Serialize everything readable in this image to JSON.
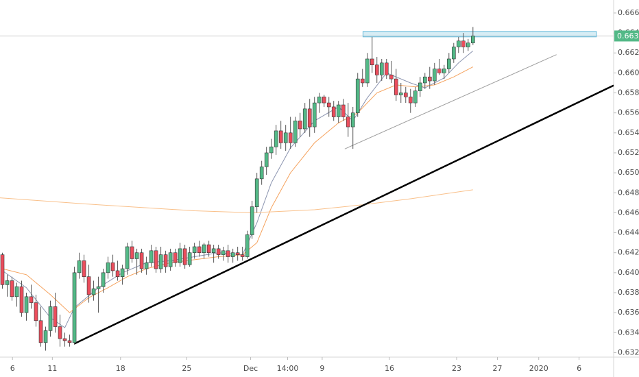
{
  "chart_data": {
    "type": "candlestick",
    "up_color": "#53b987",
    "down_color": "#eb4d5c",
    "open": [
      0.6418,
      0.6388,
      0.6392,
      0.6376,
      0.6386,
      0.636,
      0.6376,
      0.637,
      0.6352,
      0.633,
      0.6342,
      0.6366,
      0.6346,
      0.6334,
      0.6332,
      0.633,
      0.64,
      0.6412,
      0.6396,
      0.6378,
      0.6384,
      0.6386,
      0.64,
      0.641,
      0.6402,
      0.6396,
      0.6404,
      0.6426,
      0.6414,
      0.642,
      0.6404,
      0.641,
      0.6422,
      0.6404,
      0.6418,
      0.6406,
      0.642,
      0.641,
      0.6424,
      0.6408,
      0.642,
      0.6426,
      0.642,
      0.6428,
      0.642,
      0.6424,
      0.6418,
      0.6422,
      0.6416,
      0.642,
      0.6418,
      0.6416,
      0.6438,
      0.6466,
      0.6494,
      0.6506,
      0.652,
      0.6526,
      0.6542,
      0.653,
      0.654,
      0.653,
      0.6552,
      0.6544,
      0.6564,
      0.6546,
      0.657,
      0.6576,
      0.657,
      0.6566,
      0.6556,
      0.6568,
      0.6556,
      0.6546,
      0.656,
      0.6594,
      0.659,
      0.6614,
      0.6608,
      0.6598,
      0.661,
      0.6598,
      0.6594,
      0.6578,
      0.658,
      0.6576,
      0.657,
      0.6582,
      0.659,
      0.6596,
      0.6592,
      0.6604,
      0.66,
      0.6604,
      0.6614,
      0.6626,
      0.6632,
      0.6626,
      0.663
    ],
    "high": [
      0.642,
      0.6398,
      0.6396,
      0.639,
      0.6392,
      0.638,
      0.6388,
      0.6378,
      0.6366,
      0.6346,
      0.6372,
      0.638,
      0.6358,
      0.634,
      0.6338,
      0.6406,
      0.642,
      0.6418,
      0.6408,
      0.6392,
      0.6396,
      0.6404,
      0.6416,
      0.6418,
      0.6412,
      0.6408,
      0.643,
      0.6432,
      0.6424,
      0.6424,
      0.6416,
      0.6428,
      0.6426,
      0.6426,
      0.6422,
      0.6424,
      0.6424,
      0.643,
      0.6428,
      0.6426,
      0.643,
      0.6432,
      0.643,
      0.6432,
      0.6428,
      0.6428,
      0.6426,
      0.6428,
      0.6424,
      0.6426,
      0.6426,
      0.6442,
      0.6472,
      0.65,
      0.6512,
      0.6526,
      0.6534,
      0.6548,
      0.6552,
      0.6548,
      0.6556,
      0.6556,
      0.656,
      0.657,
      0.6574,
      0.6576,
      0.658,
      0.6578,
      0.6576,
      0.6572,
      0.6572,
      0.6574,
      0.657,
      0.6566,
      0.66,
      0.6604,
      0.662,
      0.6636,
      0.6616,
      0.6614,
      0.6614,
      0.6612,
      0.6604,
      0.659,
      0.6586,
      0.6584,
      0.6586,
      0.6596,
      0.66,
      0.6606,
      0.661,
      0.6614,
      0.6608,
      0.662,
      0.663,
      0.6636,
      0.664,
      0.6634,
      0.6646
    ],
    "low": [
      0.6384,
      0.6376,
      0.6372,
      0.6366,
      0.6356,
      0.6352,
      0.6364,
      0.6346,
      0.6326,
      0.6322,
      0.6336,
      0.634,
      0.6326,
      0.6326,
      0.6326,
      0.6328,
      0.6394,
      0.639,
      0.637,
      0.6372,
      0.636,
      0.638,
      0.6394,
      0.6396,
      0.6392,
      0.6388,
      0.6398,
      0.641,
      0.6398,
      0.64,
      0.6398,
      0.6406,
      0.64,
      0.64,
      0.64,
      0.6402,
      0.6406,
      0.6406,
      0.6404,
      0.6406,
      0.6414,
      0.6416,
      0.6414,
      0.6416,
      0.641,
      0.6414,
      0.6412,
      0.641,
      0.641,
      0.6412,
      0.6412,
      0.6414,
      0.6434,
      0.646,
      0.6488,
      0.6498,
      0.6514,
      0.6518,
      0.6524,
      0.6522,
      0.6524,
      0.6526,
      0.6536,
      0.654,
      0.6536,
      0.654,
      0.656,
      0.6566,
      0.6556,
      0.6552,
      0.655,
      0.6552,
      0.6536,
      0.6524,
      0.6556,
      0.6586,
      0.6586,
      0.66,
      0.659,
      0.6592,
      0.6594,
      0.659,
      0.6572,
      0.657,
      0.657,
      0.656,
      0.6566,
      0.6576,
      0.6584,
      0.6584,
      0.6588,
      0.6598,
      0.6594,
      0.66,
      0.661,
      0.662,
      0.662,
      0.6622,
      0.6628
    ],
    "close": [
      0.6388,
      0.6392,
      0.6376,
      0.6386,
      0.636,
      0.6376,
      0.637,
      0.6352,
      0.633,
      0.6342,
      0.6366,
      0.6346,
      0.6334,
      0.6332,
      0.633,
      0.64,
      0.6412,
      0.6396,
      0.6378,
      0.6384,
      0.6386,
      0.64,
      0.641,
      0.6402,
      0.6396,
      0.6404,
      0.6426,
      0.6414,
      0.642,
      0.6404,
      0.641,
      0.6422,
      0.6404,
      0.6418,
      0.6406,
      0.642,
      0.641,
      0.6424,
      0.6408,
      0.642,
      0.6426,
      0.642,
      0.6428,
      0.642,
      0.6424,
      0.6418,
      0.6422,
      0.6416,
      0.642,
      0.6418,
      0.6416,
      0.6438,
      0.6466,
      0.6494,
      0.6506,
      0.652,
      0.6526,
      0.6542,
      0.653,
      0.654,
      0.653,
      0.6552,
      0.6544,
      0.6564,
      0.6546,
      0.657,
      0.6576,
      0.657,
      0.6566,
      0.6556,
      0.6568,
      0.6556,
      0.6546,
      0.656,
      0.6594,
      0.659,
      0.6614,
      0.6608,
      0.6598,
      0.661,
      0.6598,
      0.6594,
      0.6578,
      0.658,
      0.6576,
      0.657,
      0.6582,
      0.659,
      0.6596,
      0.6592,
      0.6604,
      0.66,
      0.6604,
      0.6614,
      0.6626,
      0.6632,
      0.6626,
      0.663,
      0.6637
    ],
    "lines": [
      {
        "color": "#8c95b0",
        "x": [
          0,
          5,
          10,
          13,
          15,
          20,
          25,
          30,
          35,
          40,
          45,
          50,
          53,
          56,
          60,
          65,
          70,
          73,
          76,
          80,
          85,
          88,
          92,
          95,
          98
        ],
        "values": [
          0.6402,
          0.6385,
          0.6355,
          0.6345,
          0.6365,
          0.6385,
          0.64,
          0.641,
          0.6412,
          0.6416,
          0.642,
          0.6418,
          0.645,
          0.649,
          0.6525,
          0.6552,
          0.6566,
          0.6552,
          0.6575,
          0.66,
          0.659,
          0.6585,
          0.6595,
          0.661,
          0.6622
        ]
      },
      {
        "color": "#f5a25d",
        "x": [
          0,
          5,
          10,
          14,
          18,
          22,
          26,
          30,
          35,
          40,
          45,
          50,
          53,
          56,
          60,
          65,
          70,
          74,
          78,
          82,
          86,
          90,
          94,
          98
        ],
        "values": [
          0.6404,
          0.6398,
          0.6378,
          0.636,
          0.6375,
          0.6385,
          0.6396,
          0.6404,
          0.641,
          0.6413,
          0.6416,
          0.6418,
          0.643,
          0.6465,
          0.65,
          0.653,
          0.655,
          0.656,
          0.658,
          0.6588,
          0.6586,
          0.6588,
          0.6596,
          0.6606
        ]
      },
      {
        "color": "#f9c08a",
        "x": [
          -0.5,
          20,
          40,
          52,
          65,
          75,
          85,
          98
        ],
        "values": [
          0.6475,
          0.6468,
          0.6462,
          0.646,
          0.6463,
          0.6468,
          0.6474,
          0.6483
        ]
      }
    ],
    "trendlines": [
      {
        "color": "#000000",
        "x": [
          15,
          127.3
        ],
        "y": [
          0.6329,
          0.65875
        ]
      },
      {
        "color": "#9e9e9e",
        "x": [
          71.3,
          115.4
        ],
        "y": [
          0.65239,
          0.66183
        ]
      }
    ],
    "zone": {
      "color": "#5fb7d9",
      "x": [
        75.1,
        123.7
      ],
      "y": [
        0.66361,
        0.66415
      ]
    },
    "last_price": {
      "value": 0.6637,
      "label": "0.66370"
    },
    "xlim": [
      -0.5,
      127.3
    ],
    "ylim": [
      0.63155,
      0.6673
    ],
    "xticks": [
      {
        "value": 2.1,
        "label": "6"
      },
      {
        "value": 10.4,
        "label": "11"
      },
      {
        "value": 24.6,
        "label": "18"
      },
      {
        "value": 38.4,
        "label": "25"
      },
      {
        "value": 51.7,
        "label": "Dec"
      },
      {
        "value": 59.4,
        "label": "14:00"
      },
      {
        "value": 66.6,
        "label": "9"
      },
      {
        "value": 80.6,
        "label": "16"
      },
      {
        "value": 94.6,
        "label": "23"
      },
      {
        "value": 103.1,
        "label": "27"
      },
      {
        "value": 111.7,
        "label": "2020"
      },
      {
        "value": 120.1,
        "label": "6"
      }
    ],
    "yticks": [
      {
        "value": 0.632,
        "label": "0.63200"
      },
      {
        "value": 0.634,
        "label": "0.63400"
      },
      {
        "value": 0.636,
        "label": "0.63600"
      },
      {
        "value": 0.638,
        "label": "0.63800"
      },
      {
        "value": 0.64,
        "label": "0.64000"
      },
      {
        "value": 0.642,
        "label": "0.64200"
      },
      {
        "value": 0.644,
        "label": "0.64400"
      },
      {
        "value": 0.646,
        "label": "0.64600"
      },
      {
        "value": 0.648,
        "label": "0.64800"
      },
      {
        "value": 0.65,
        "label": "0.65000"
      },
      {
        "value": 0.652,
        "label": "0.65200"
      },
      {
        "value": 0.654,
        "label": "0.65400"
      },
      {
        "value": 0.656,
        "label": "0.65600"
      },
      {
        "value": 0.658,
        "label": "0.65800"
      },
      {
        "value": 0.66,
        "label": "0.66000"
      },
      {
        "value": 0.662,
        "label": "0.66200"
      },
      {
        "value": 0.664,
        "label": "0.66400"
      },
      {
        "value": 0.666,
        "label": "0.66600"
      }
    ]
  }
}
